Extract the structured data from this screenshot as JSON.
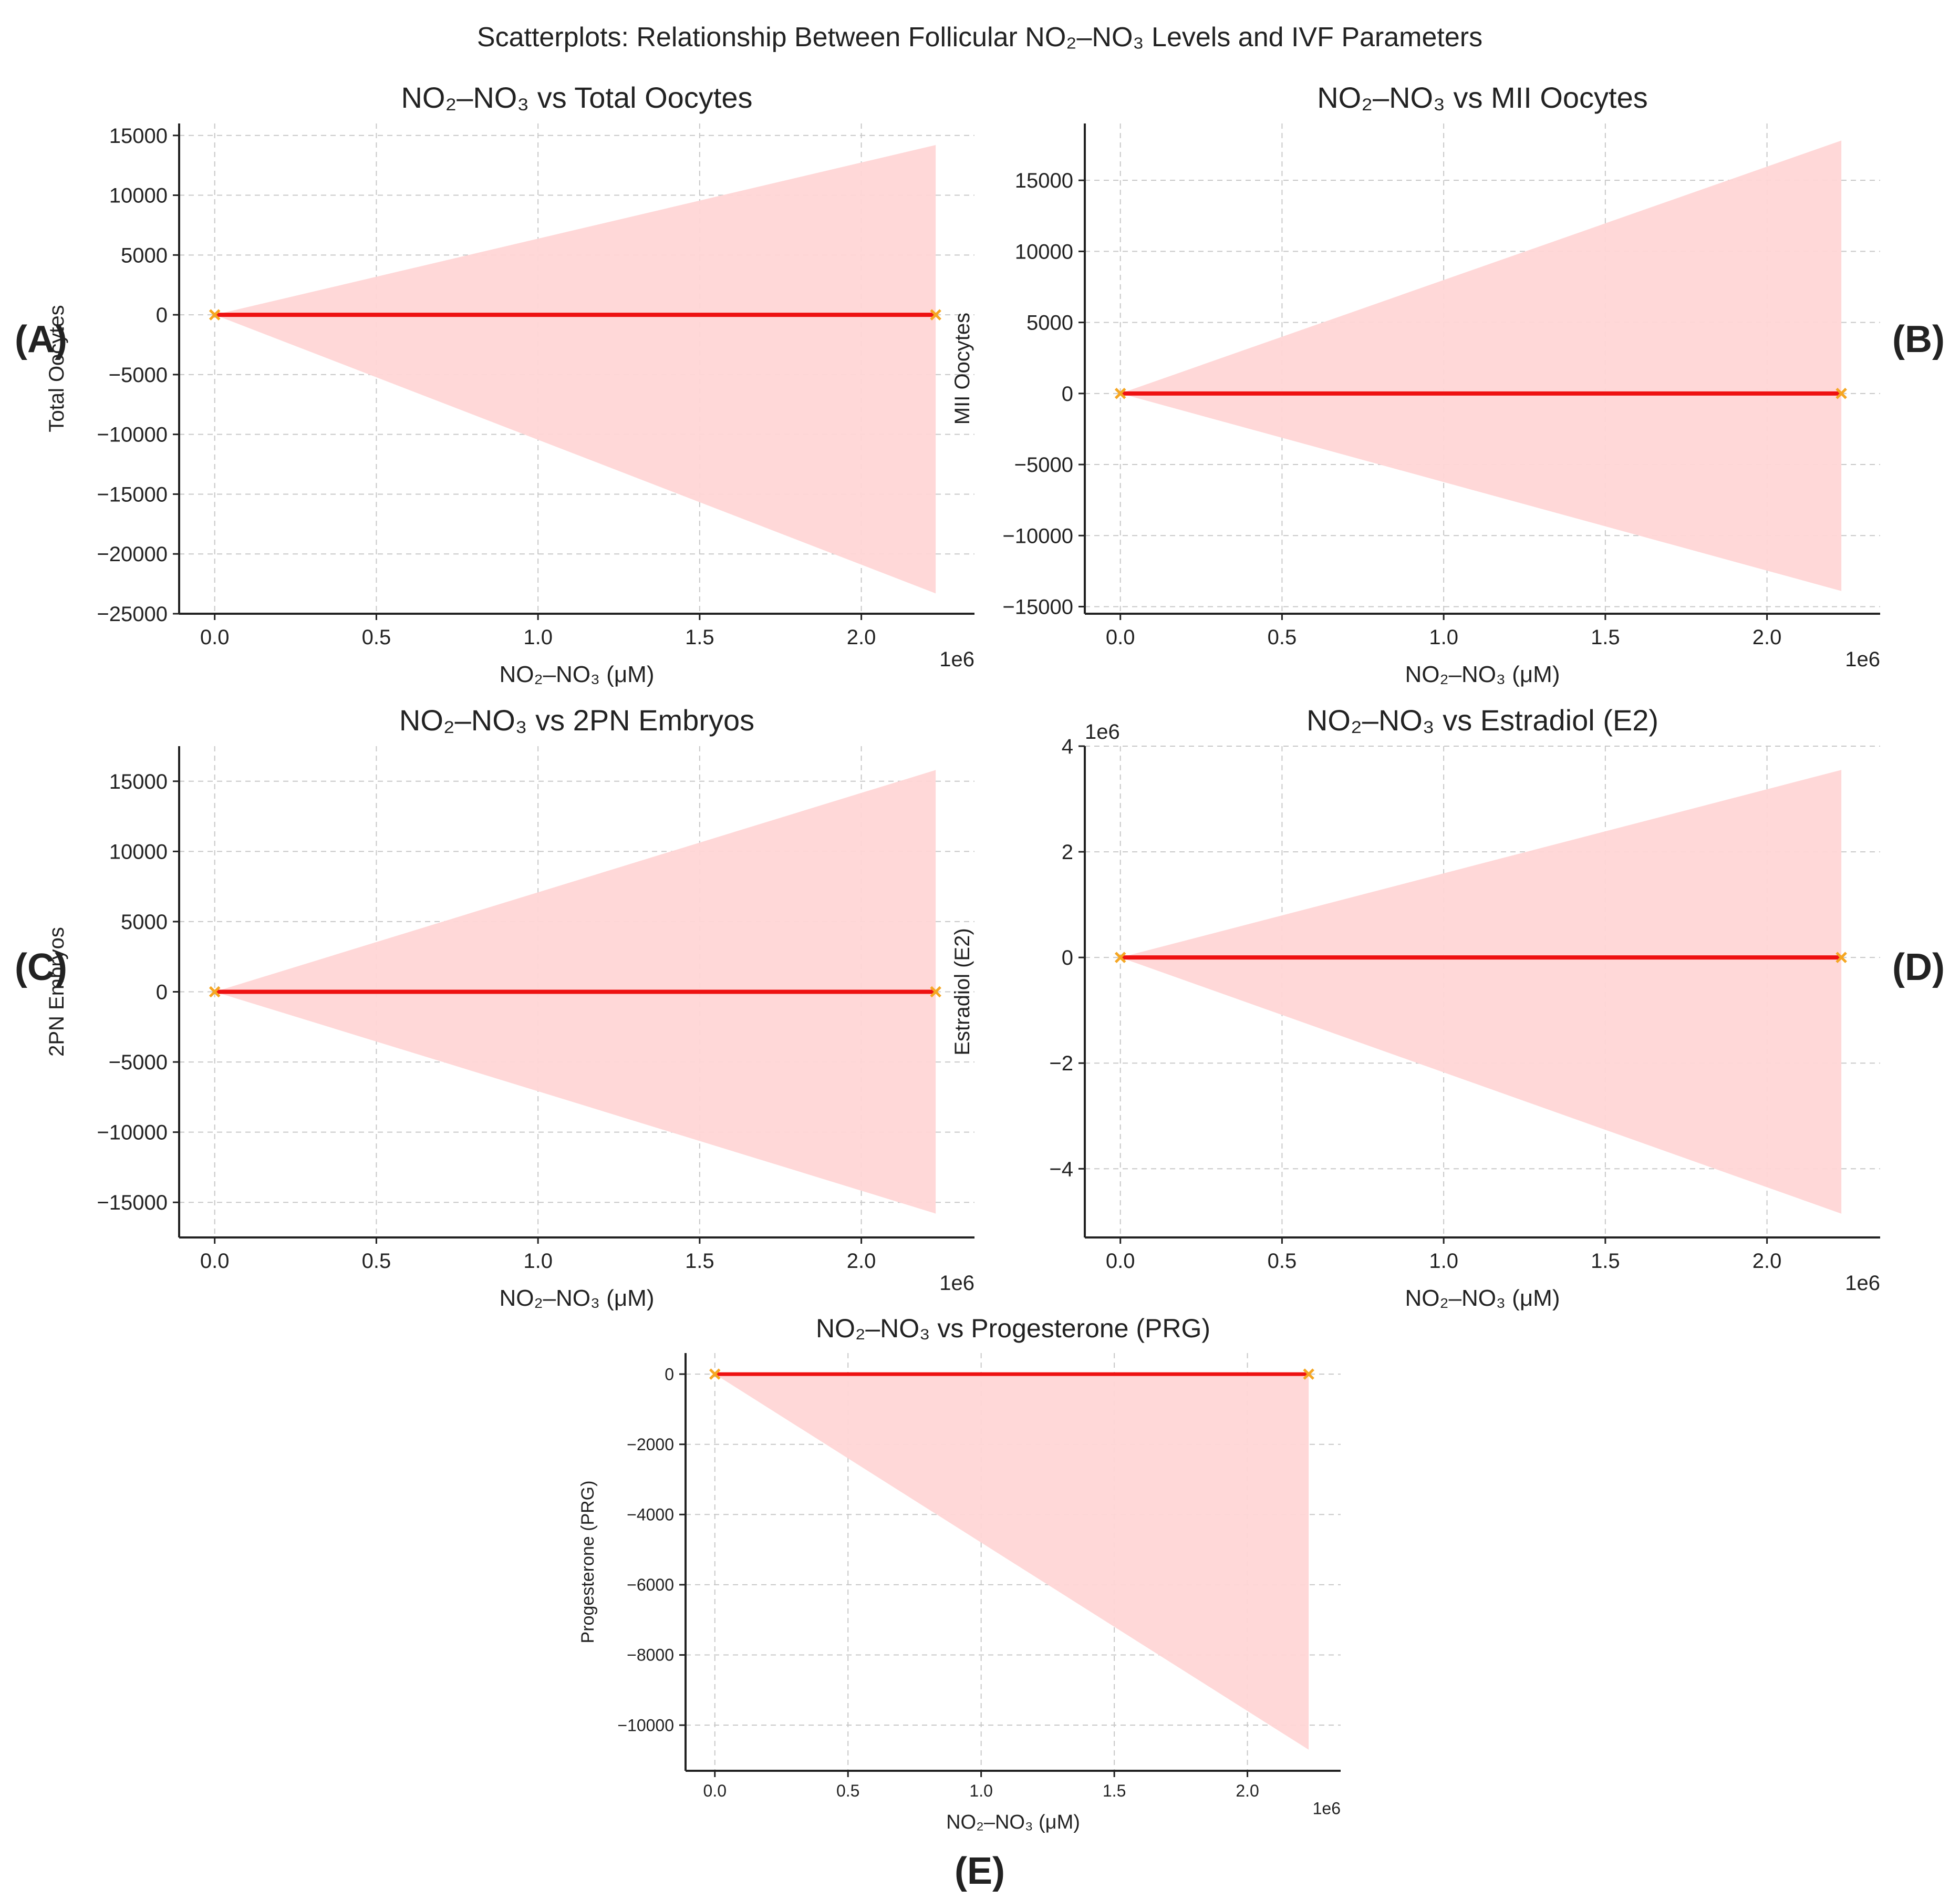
{
  "figure": {
    "title": "Scatterplots: Relationship Between Follicular NO₂–NO₃ Levels and IVF Parameters"
  },
  "colors": {
    "line": "#ee1111",
    "band": "#ffd6d6",
    "marker": "#f5a623",
    "grid": "#c8c8c8",
    "axis": "#222222",
    "text": "#222222"
  },
  "chart_data": [
    {
      "id": "A",
      "panel_label": "(A)",
      "type": "scatter",
      "title": "NO₂–NO₃ vs Total Oocytes",
      "xlabel": "NO₂–NO₃ (μM)",
      "ylabel": "Total Oocytes",
      "x_offset_label": "1e6",
      "y_offset_label": "",
      "xlim": [
        -110000,
        2350000
      ],
      "ylim": [
        -25000,
        16000
      ],
      "x_ticks": [
        0,
        500000,
        1000000,
        1500000,
        2000000
      ],
      "x_tick_labels": [
        "0.0",
        "0.5",
        "1.0",
        "1.5",
        "2.0"
      ],
      "y_ticks": [
        15000,
        10000,
        5000,
        0,
        -5000,
        -10000,
        -15000,
        -20000,
        -25000
      ],
      "y_tick_labels": [
        "15000",
        "10000",
        "5000",
        "0",
        "−5000",
        "−10000",
        "−15000",
        "−20000",
        "−25000"
      ],
      "grid": true,
      "points": [
        {
          "x": 0,
          "y": 0
        },
        {
          "x": 2230000,
          "y": 0
        }
      ],
      "fit_line": {
        "x": [
          0,
          2230000
        ],
        "y": [
          0,
          0
        ]
      },
      "confidence_band": {
        "x": [
          0,
          2230000
        ],
        "upper": [
          0,
          14200
        ],
        "lower": [
          0,
          -23300
        ]
      }
    },
    {
      "id": "B",
      "panel_label": "(B)",
      "type": "scatter",
      "title": "NO₂–NO₃ vs MII Oocytes",
      "xlabel": "NO₂–NO₃ (μM)",
      "ylabel": "MII Oocytes",
      "x_offset_label": "1e6",
      "y_offset_label": "",
      "xlim": [
        -110000,
        2350000
      ],
      "ylim": [
        -15500,
        19000
      ],
      "x_ticks": [
        0,
        500000,
        1000000,
        1500000,
        2000000
      ],
      "x_tick_labels": [
        "0.0",
        "0.5",
        "1.0",
        "1.5",
        "2.0"
      ],
      "y_ticks": [
        15000,
        10000,
        5000,
        0,
        -5000,
        -10000,
        -15000
      ],
      "y_tick_labels": [
        "15000",
        "10000",
        "5000",
        "0",
        "−5000",
        "−10000",
        "−15000"
      ],
      "grid": true,
      "points": [
        {
          "x": 0,
          "y": 0
        },
        {
          "x": 2230000,
          "y": 0
        }
      ],
      "fit_line": {
        "x": [
          0,
          2230000
        ],
        "y": [
          0,
          0
        ]
      },
      "confidence_band": {
        "x": [
          0,
          2230000
        ],
        "upper": [
          0,
          17800
        ],
        "lower": [
          0,
          -13900
        ]
      }
    },
    {
      "id": "C",
      "panel_label": "(C)",
      "type": "scatter",
      "title": "NO₂–NO₃ vs 2PN Embryos",
      "xlabel": "NO₂–NO₃ (μM)",
      "ylabel": "2PN Embryos",
      "x_offset_label": "1e6",
      "y_offset_label": "",
      "xlim": [
        -110000,
        2350000
      ],
      "ylim": [
        -17500,
        17500
      ],
      "x_ticks": [
        0,
        500000,
        1000000,
        1500000,
        2000000
      ],
      "x_tick_labels": [
        "0.0",
        "0.5",
        "1.0",
        "1.5",
        "2.0"
      ],
      "y_ticks": [
        15000,
        10000,
        5000,
        0,
        -5000,
        -10000,
        -15000
      ],
      "y_tick_labels": [
        "15000",
        "10000",
        "5000",
        "0",
        "−5000",
        "−10000",
        "−15000"
      ],
      "grid": true,
      "points": [
        {
          "x": 0,
          "y": 0
        },
        {
          "x": 2230000,
          "y": 0
        }
      ],
      "fit_line": {
        "x": [
          0,
          2230000
        ],
        "y": [
          0,
          0
        ]
      },
      "confidence_band": {
        "x": [
          0,
          2230000
        ],
        "upper": [
          0,
          15800
        ],
        "lower": [
          0,
          -15800
        ]
      }
    },
    {
      "id": "D",
      "panel_label": "(D)",
      "type": "scatter",
      "title": "NO₂–NO₃ vs Estradiol (E2)",
      "xlabel": "NO₂–NO₃ (μM)",
      "ylabel": "Estradiol (E2)",
      "x_offset_label": "1e6",
      "y_offset_label": "1e6",
      "xlim": [
        -110000,
        2350000
      ],
      "ylim": [
        -5300000,
        4000000
      ],
      "x_ticks": [
        0,
        500000,
        1000000,
        1500000,
        2000000
      ],
      "x_tick_labels": [
        "0.0",
        "0.5",
        "1.0",
        "1.5",
        "2.0"
      ],
      "y_ticks": [
        4000000,
        2000000,
        0,
        -2000000,
        -4000000
      ],
      "y_tick_labels": [
        "4",
        "2",
        "0",
        "−2",
        "−4"
      ],
      "grid": true,
      "points": [
        {
          "x": 0,
          "y": 0
        },
        {
          "x": 2230000,
          "y": 0
        }
      ],
      "fit_line": {
        "x": [
          0,
          2230000
        ],
        "y": [
          0,
          0
        ]
      },
      "confidence_band": {
        "x": [
          0,
          2230000
        ],
        "upper": [
          0,
          3550000
        ],
        "lower": [
          0,
          -4850000
        ]
      }
    },
    {
      "id": "E",
      "panel_label": "(E)",
      "type": "scatter",
      "title": "NO₂–NO₃ vs Progesterone (PRG)",
      "xlabel": "NO₂–NO₃ (μM)",
      "ylabel": "Progesterone (PRG)",
      "x_offset_label": "1e6",
      "y_offset_label": "",
      "xlim": [
        -110000,
        2350000
      ],
      "ylim": [
        -11300,
        600
      ],
      "x_ticks": [
        0,
        500000,
        1000000,
        1500000,
        2000000
      ],
      "x_tick_labels": [
        "0.0",
        "0.5",
        "1.0",
        "1.5",
        "2.0"
      ],
      "y_ticks": [
        0,
        -2000,
        -4000,
        -6000,
        -8000,
        -10000
      ],
      "y_tick_labels": [
        "0",
        "−2000",
        "−4000",
        "−6000",
        "−8000",
        "−10000"
      ],
      "grid": true,
      "points": [
        {
          "x": 0,
          "y": 0
        },
        {
          "x": 2230000,
          "y": 0
        }
      ],
      "fit_line": {
        "x": [
          0,
          2230000
        ],
        "y": [
          0,
          0
        ]
      },
      "confidence_band": {
        "x": [
          0,
          2230000
        ],
        "upper": [
          0,
          0
        ],
        "lower": [
          0,
          -10700
        ]
      }
    }
  ]
}
